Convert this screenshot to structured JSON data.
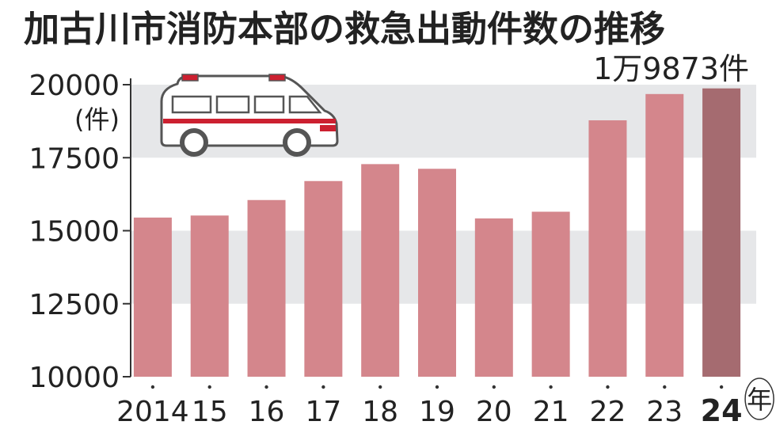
{
  "title": "加古川市消防本部の救急出動件数の推移",
  "chart_data": {
    "type": "bar",
    "title": "加古川市消防本部の救急出動件数の推移",
    "ylabel": "(件)",
    "xlabel": "年",
    "categories": [
      "2014",
      "15",
      "16",
      "17",
      "18",
      "19",
      "20",
      "21",
      "22",
      "23",
      "24"
    ],
    "values": [
      15450,
      15520,
      16050,
      16700,
      17280,
      17120,
      15420,
      15650,
      18780,
      19680,
      19873
    ],
    "ylim": [
      10000,
      20000
    ],
    "yticks": [
      20000,
      17500,
      15000,
      12500,
      10000
    ],
    "ytick_labels": [
      "20000",
      "17500",
      "15000",
      "12500",
      "10000"
    ],
    "highlight_index": 10,
    "annotation": "1万9873件",
    "colors": {
      "bar": "#d4868c",
      "bar_highlight": "#a56b70",
      "band": "#e6e7e9",
      "ambulance_stripe": "#cc2030"
    },
    "grid": "alternating horizontal bands"
  }
}
